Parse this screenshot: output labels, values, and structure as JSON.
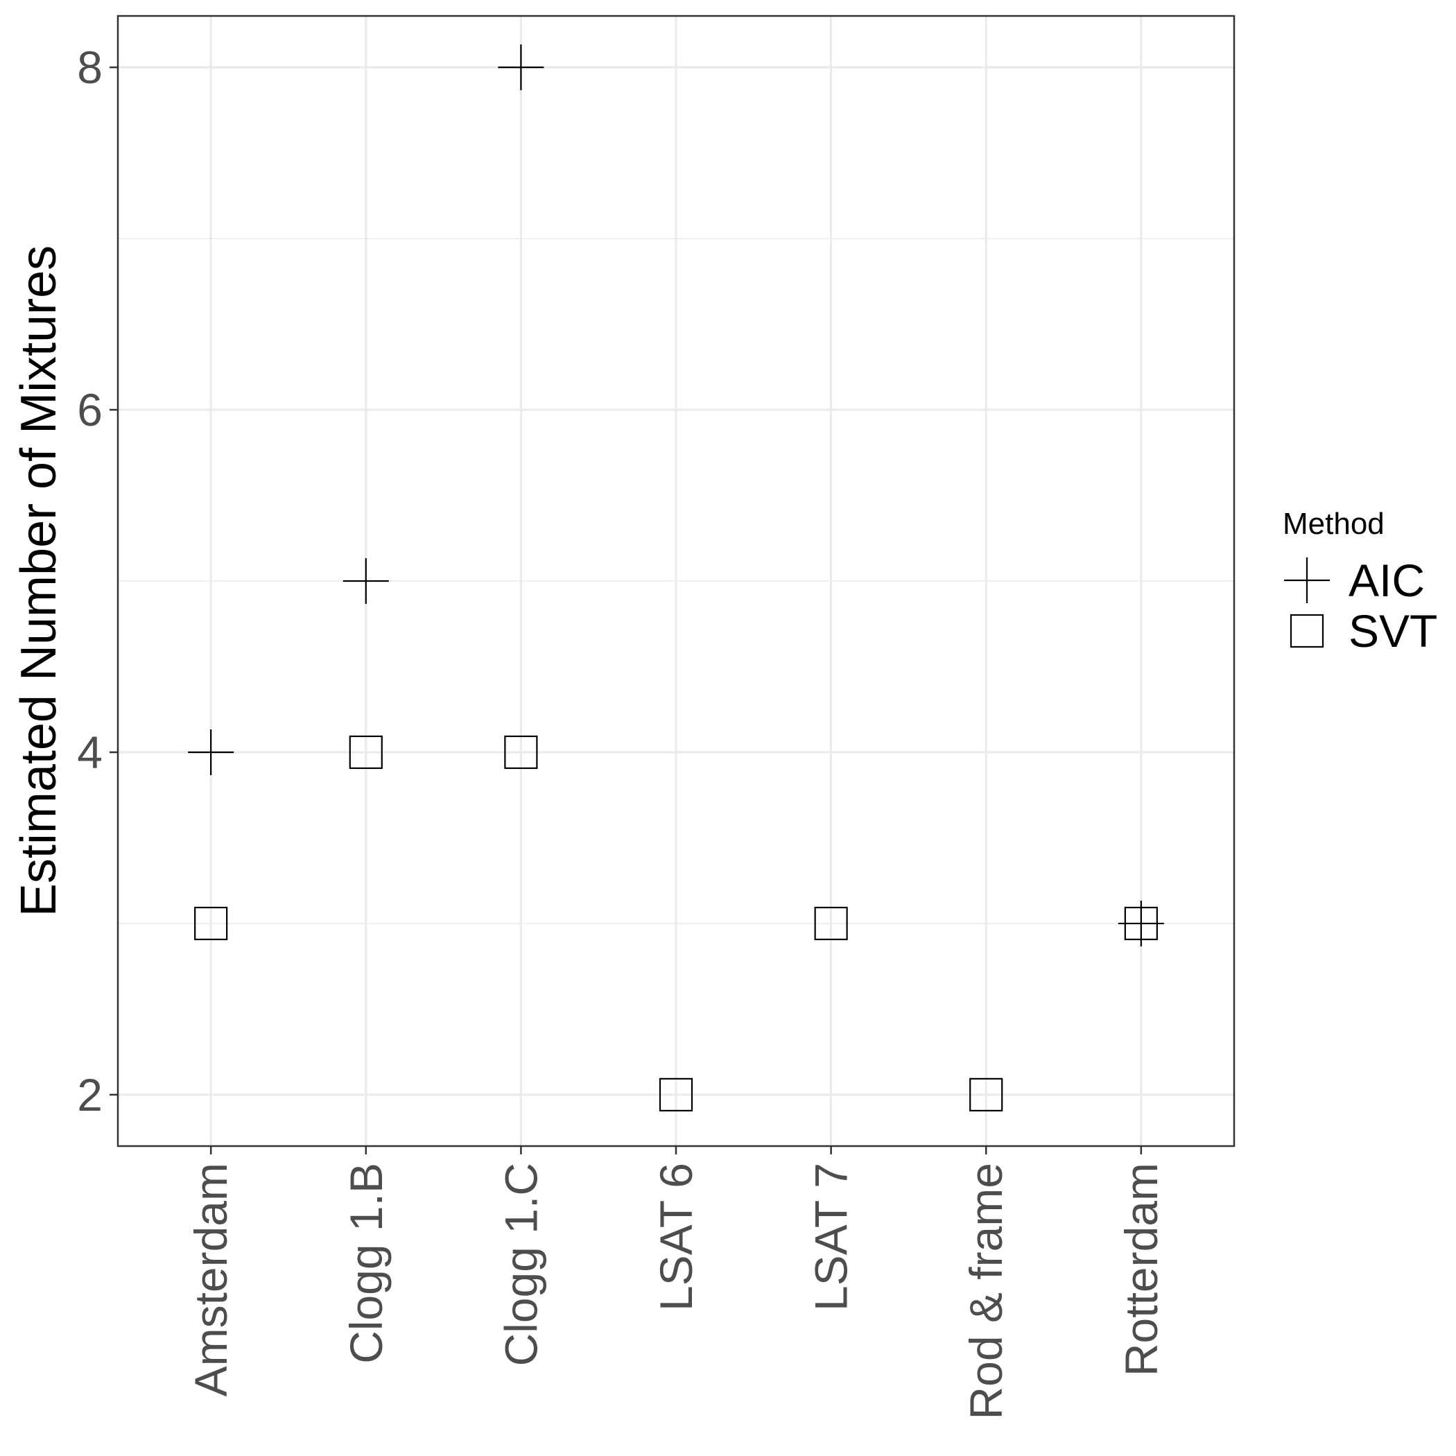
{
  "chart_data": {
    "type": "scatter",
    "categories": [
      "Amsterdam",
      "Clogg 1.B",
      "Clogg 1.C",
      "LSAT 6",
      "LSAT 7",
      "Rod & frame",
      "Rotterdam"
    ],
    "series": [
      {
        "name": "AIC",
        "shape": "plus",
        "values": [
          4,
          5,
          8,
          null,
          null,
          null,
          3
        ]
      },
      {
        "name": "SVT",
        "shape": "open-square",
        "values": [
          3,
          4,
          4,
          2,
          3,
          2,
          3
        ]
      }
    ],
    "xlabel": "",
    "ylabel": "Estimated Number of Mixtures",
    "ylim": [
      1.7,
      8.3
    ],
    "yticks": [
      2,
      4,
      6,
      8
    ],
    "yticks_minor": [
      3,
      5,
      7
    ],
    "grid": true,
    "legend": {
      "title": "Method",
      "position": "right"
    },
    "colors": {
      "points": "#000000",
      "grid": "#ebebeb",
      "panel_border": "#333333",
      "tick_text": "#4d4d4d"
    }
  }
}
